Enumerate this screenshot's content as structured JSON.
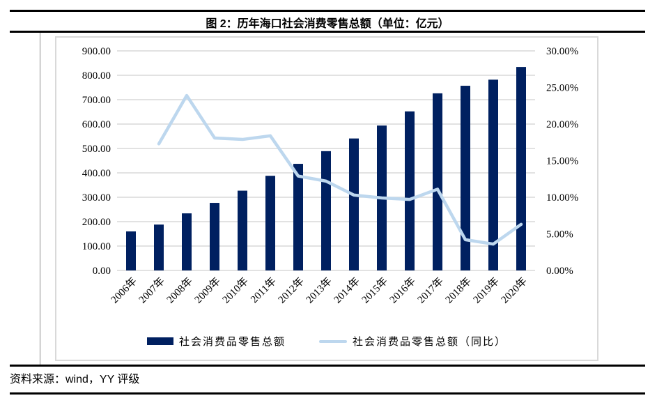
{
  "figure": {
    "title": "图 2：历年海口社会消费零售总额（单位：亿元）",
    "source": "资料来源：wind，YY 评级"
  },
  "colors": {
    "bar": "#002060",
    "line": "#bdd7ee",
    "gridline": "#d9d9d9",
    "chart_border": "#d9d9d9",
    "rule_lines": "#000000"
  },
  "legend": [
    {
      "label": "社会消费品零售总额",
      "type": "bar",
      "color": "#002060"
    },
    {
      "label": "社会消费品零售总额（同比）",
      "type": "line",
      "color": "#bdd7ee"
    }
  ],
  "chart_data": {
    "type": "bar",
    "title": "历年海口社会消费零售总额（单位：亿元）",
    "categories": [
      "2006年",
      "2007年",
      "2008年",
      "2009年",
      "2010年",
      "2011年",
      "2012年",
      "2013年",
      "2014年",
      "2015年",
      "2016年",
      "2017年",
      "2018年",
      "2019年",
      "2020年"
    ],
    "series": [
      {
        "name": "社会消费品零售总额",
        "type": "bar",
        "axis": "left",
        "color": "#002060",
        "values": [
          160,
          188,
          234,
          277,
          327,
          388,
          437,
          489,
          541,
          594,
          652,
          726,
          757,
          782,
          834
        ]
      },
      {
        "name": "社会消费品零售总额（同比）",
        "type": "line",
        "axis": "right",
        "color": "#bdd7ee",
        "values": [
          null,
          17.3,
          23.9,
          18.1,
          17.9,
          18.4,
          12.9,
          12.2,
          10.3,
          9.9,
          9.7,
          11.1,
          4.2,
          3.6,
          6.3
        ]
      }
    ],
    "left_axis": {
      "min": 0,
      "max": 900,
      "step": 100,
      "tick_labels": [
        "0.00",
        "100.00",
        "200.00",
        "300.00",
        "400.00",
        "500.00",
        "600.00",
        "700.00",
        "800.00",
        "900.00"
      ]
    },
    "right_axis": {
      "min": 0,
      "max": 30,
      "step": 5,
      "tick_labels": [
        "0.00%",
        "5.00%",
        "10.00%",
        "15.00%",
        "20.00%",
        "25.00%",
        "30.00%"
      ]
    },
    "grid": true,
    "legend_position": "bottom"
  }
}
